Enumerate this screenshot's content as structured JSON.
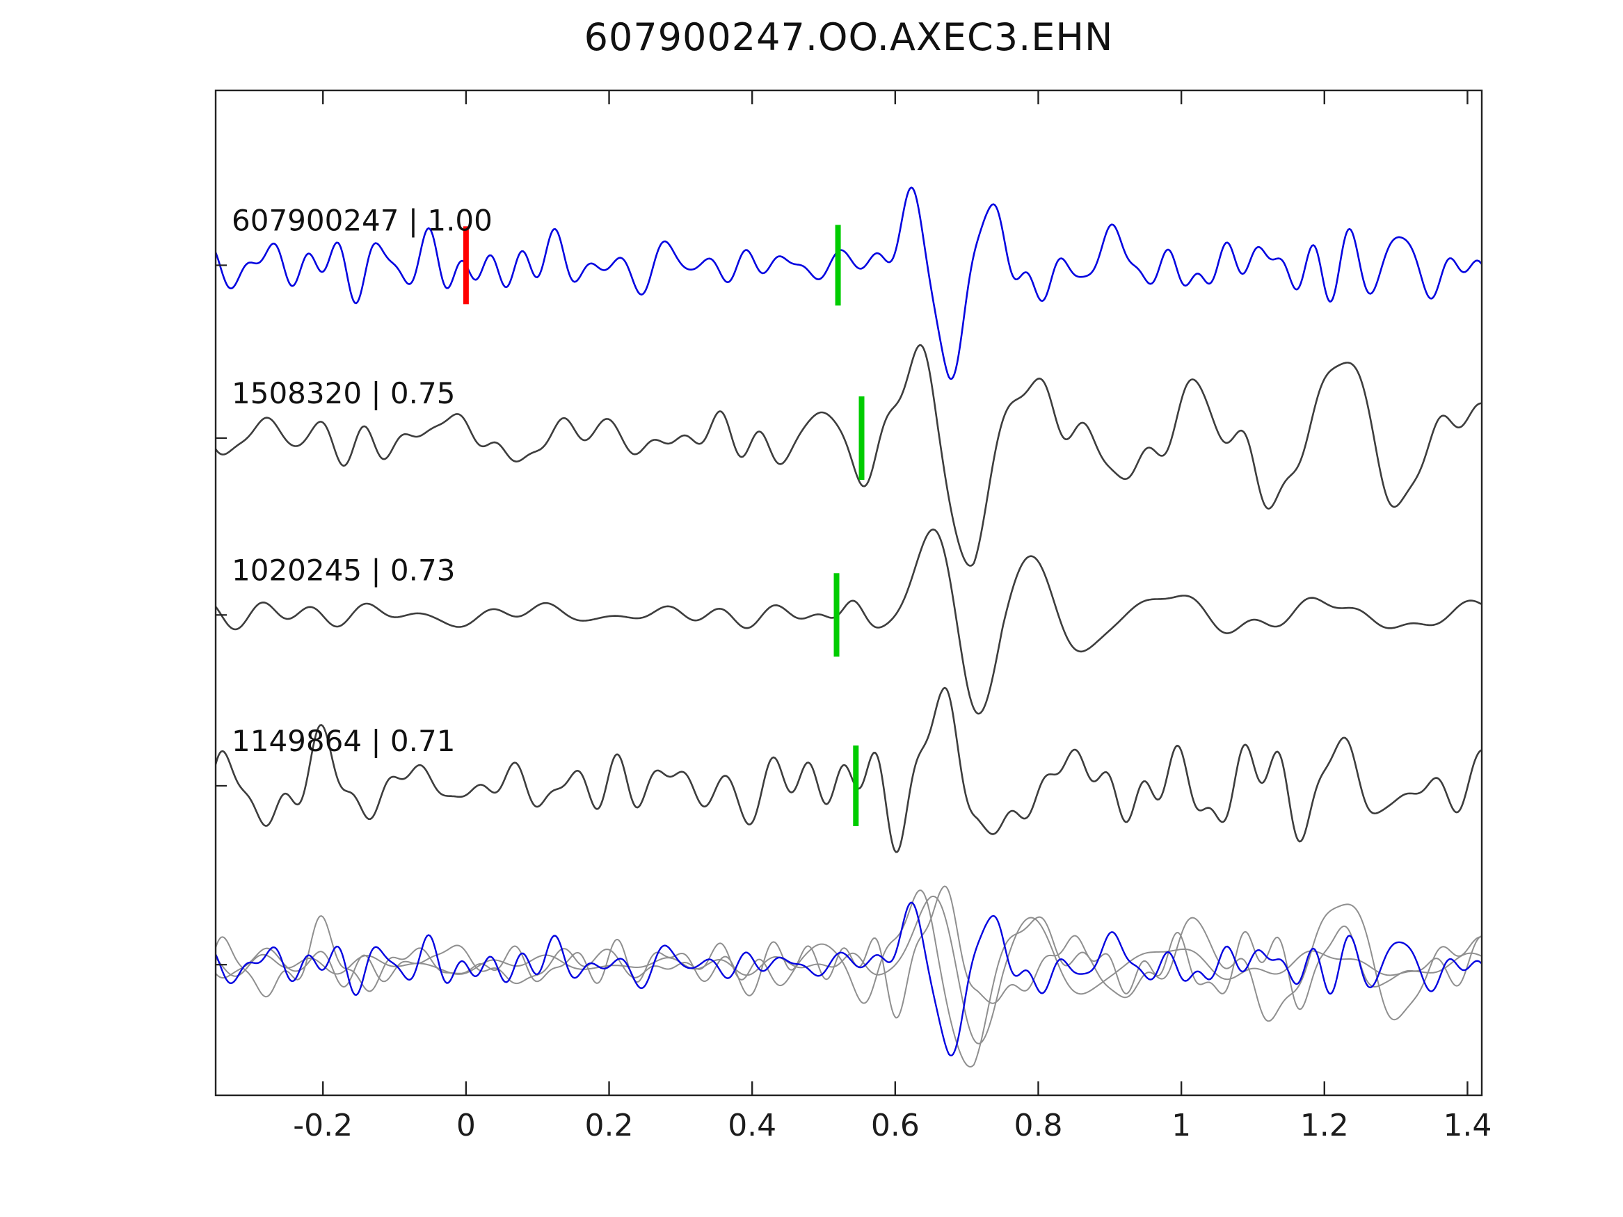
{
  "page": {
    "title": "607900247.OO.AXEC3.EHN"
  },
  "chart_data": {
    "type": "line",
    "title": "607900247.OO.AXEC3.EHN",
    "subtitle": "",
    "xlabel": "",
    "ylabel": "",
    "xlim": [
      -0.35,
      1.42
    ],
    "x_ticks": [
      -0.2,
      0,
      0.2,
      0.4,
      0.6,
      0.8,
      1,
      1.2,
      1.4
    ],
    "x_tick_labels": [
      "-0.2",
      "0",
      "0.2",
      "0.4",
      "0.6",
      "0.8",
      "1",
      "1.2",
      "1.4"
    ],
    "grid": false,
    "legend_position": "none",
    "colors": {
      "reference": "#0505e0",
      "match": "#3d3d3d",
      "overlay_gray": "#8f8f8f",
      "pick_green": "#00cc00",
      "pick_red": "#ff0000",
      "axis": "#222222",
      "label_text": "#111111"
    },
    "row_fractions": [
      0.174,
      0.346,
      0.522,
      0.692,
      0.87
    ],
    "traces": [
      {
        "id": "607900247",
        "correlation": 1.0,
        "label": "607900247 | 1.00",
        "color_key": "reference",
        "picks": [
          {
            "time": 0.0,
            "color_key": "pick_red",
            "half_height": 56,
            "width": 8
          },
          {
            "time": 0.52,
            "color_key": "pick_green",
            "half_height": 58,
            "width": 8
          }
        ],
        "synth": {
          "seed": 11,
          "noise_amp": 20,
          "noise_fmin": 3,
          "noise_fmax": 26,
          "event_time": 0.675,
          "event_amp": 150,
          "event_freq": 7.8,
          "event_width": 0.048,
          "coda_amp": 40,
          "coda_decay": 0.45,
          "coda_freq": 5.2,
          "onset_time": 0.52,
          "onset_amp": 35
        }
      },
      {
        "id": "1508320",
        "correlation": 0.75,
        "label": "1508320 | 0.75",
        "color_key": "match",
        "picks": [
          {
            "time": 0.553,
            "color_key": "pick_green",
            "half_height": 60,
            "width": 8
          }
        ],
        "synth": {
          "seed": 22,
          "noise_amp": 18,
          "noise_fmin": 3,
          "noise_fmax": 22,
          "event_time": 0.66,
          "event_amp": 135,
          "event_freq": 7.0,
          "event_width": 0.075,
          "coda_amp": 75,
          "coda_decay": 0.85,
          "coda_freq": 5.0,
          "late_time": 1.22,
          "late_amp": 95,
          "late_freq": 6.5,
          "late_width": 0.065,
          "onset_time": 0.553,
          "onset_amp": 40
        }
      },
      {
        "id": "1020245",
        "correlation": 0.73,
        "label": "1020245 | 0.73",
        "color_key": "match",
        "picks": [
          {
            "time": 0.518,
            "color_key": "pick_green",
            "half_height": 60,
            "width": 8
          }
        ],
        "synth": {
          "seed": 33,
          "noise_amp": 8,
          "noise_fmin": 2,
          "noise_fmax": 16,
          "event_time": 0.7,
          "event_amp": 150,
          "event_freq": 6.0,
          "event_width": 0.075,
          "coda_amp": 55,
          "coda_decay": 0.55,
          "coda_freq": 4.5,
          "onset_time": 0.518,
          "onset_amp": 45
        }
      },
      {
        "id": "1149864",
        "correlation": 0.71,
        "label": "1149864 | 0.71",
        "color_key": "match",
        "picks": [
          {
            "time": 0.545,
            "color_key": "pick_green",
            "half_height": 58,
            "width": 8
          }
        ],
        "synth": {
          "seed": 44,
          "noise_amp": 28,
          "noise_fmin": 3,
          "noise_fmax": 22,
          "event_time": 0.665,
          "event_amp": 145,
          "event_freq": 7.2,
          "event_width": 0.06,
          "coda_amp": 45,
          "coda_decay": 0.5,
          "coda_freq": 5.5,
          "onset_time": 0.545,
          "onset_amp": 40
        }
      }
    ],
    "overlay": {
      "row": 4,
      "order": [
        "1508320",
        "1020245",
        "1149864",
        "607900247"
      ],
      "scale": 0.8,
      "gray_ids": [
        "1508320",
        "1020245",
        "1149864"
      ],
      "reference_id": "607900247"
    }
  }
}
